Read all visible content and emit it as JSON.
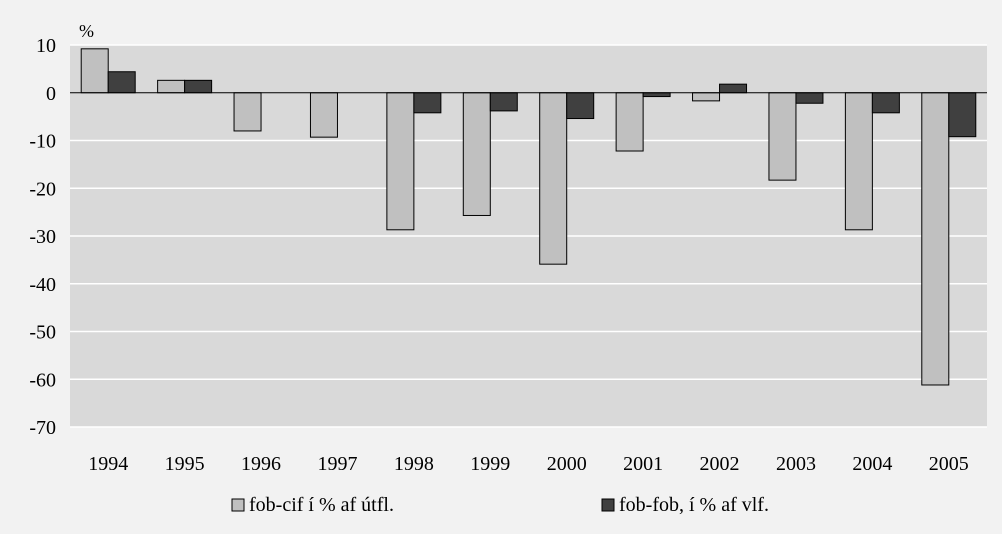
{
  "chart_data": {
    "type": "bar",
    "unit_label": "%",
    "categories": [
      "1994",
      "1995",
      "1996",
      "1997",
      "1998",
      "1999",
      "2000",
      "2001",
      "2002",
      "2003",
      "2004",
      "2005"
    ],
    "series": [
      {
        "name": "fob-cif í % af útfl.",
        "color": "#c0c0c0",
        "values": [
          9.2,
          2.6,
          -8.0,
          -9.3,
          -28.7,
          -25.7,
          -35.9,
          -12.2,
          -1.7,
          -18.3,
          -28.7,
          -61.2
        ]
      },
      {
        "name": "fob-fob, í % af vlf.",
        "color": "#404040",
        "values": [
          4.4,
          2.6,
          0,
          0,
          -4.2,
          -3.8,
          -5.4,
          -0.8,
          1.8,
          -2.2,
          -4.2,
          -9.2
        ]
      }
    ],
    "yticks": [
      10,
      0,
      -10,
      -20,
      -30,
      -40,
      -50,
      -60,
      -70
    ],
    "ylim": [
      -70,
      10
    ],
    "grid": true,
    "legend_position": "bottom",
    "plot_background": "#d9d9d9",
    "page_background": "#f2f2f2"
  }
}
